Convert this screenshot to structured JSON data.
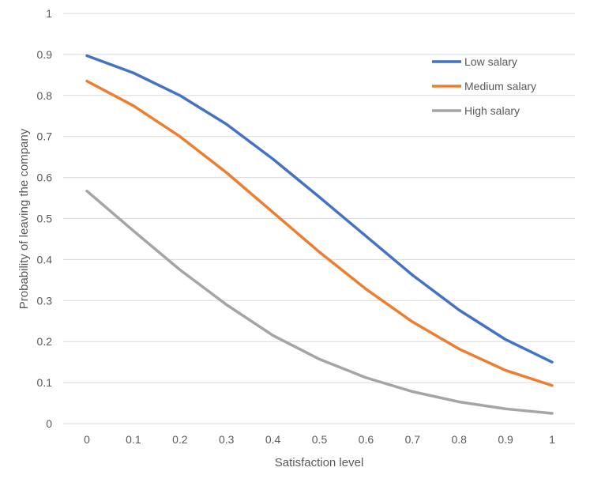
{
  "chart_data": {
    "type": "line",
    "title": "",
    "xlabel": "Satisfaction level",
    "ylabel": "Probability of leaving the company",
    "x": [
      0,
      0.1,
      0.2,
      0.3,
      0.4,
      0.5,
      0.6,
      0.7,
      0.8,
      0.9,
      1
    ],
    "x_tick_labels": [
      "0",
      "0.1",
      "0.2",
      "0.3",
      "0.4",
      "0.5",
      "0.6",
      "0.7",
      "0.8",
      "0.9",
      "1"
    ],
    "y_tick_labels": [
      "0",
      "0.1",
      "0.2",
      "0.3",
      "0.4",
      "0.5",
      "0.6",
      "0.7",
      "0.8",
      "0.9",
      "1"
    ],
    "y_ticks": [
      0,
      0.1,
      0.2,
      0.3,
      0.4,
      0.5,
      0.6,
      0.7,
      0.8,
      0.9,
      1
    ],
    "xlim": [
      0,
      1
    ],
    "ylim": [
      0,
      1
    ],
    "grid": true,
    "legend_position": "top-right",
    "series": [
      {
        "name": "Low salary",
        "color": "#4472C4",
        "values": [
          0.897,
          0.855,
          0.8,
          0.73,
          0.645,
          0.552,
          0.457,
          0.362,
          0.277,
          0.205,
          0.15
        ]
      },
      {
        "name": "Medium salary",
        "color": "#ED7D31",
        "values": [
          0.835,
          0.775,
          0.7,
          0.612,
          0.515,
          0.418,
          0.328,
          0.248,
          0.182,
          0.13,
          0.093
        ]
      },
      {
        "name": "High salary",
        "color": "#A5A5A5",
        "values": [
          0.567,
          0.47,
          0.375,
          0.29,
          0.215,
          0.157,
          0.112,
          0.078,
          0.053,
          0.036,
          0.025
        ]
      }
    ]
  }
}
